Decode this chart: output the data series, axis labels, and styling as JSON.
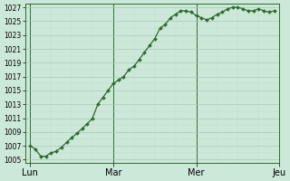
{
  "x_labels": [
    "Lun",
    "Mar",
    "Mer",
    "Jeu"
  ],
  "y_values": [
    1007,
    1006.5,
    1005.5,
    1005.5,
    1006,
    1006.2,
    1006.8,
    1007.5,
    1008.2,
    1008.8,
    1009.5,
    1010.2,
    1011.0,
    1013.0,
    1014.0,
    1015.0,
    1016.0,
    1016.5,
    1017.0,
    1018.0,
    1018.5,
    1019.5,
    1020.5,
    1021.5,
    1022.5,
    1024.0,
    1024.5,
    1025.5,
    1026.0,
    1026.5,
    1026.5,
    1026.3,
    1025.8,
    1025.5,
    1025.2,
    1025.5,
    1026.0,
    1026.3,
    1026.8,
    1027.0,
    1027.0,
    1026.8,
    1026.5,
    1026.5,
    1026.8,
    1026.5,
    1026.3,
    1026.5
  ],
  "ylim_min": 1004.5,
  "ylim_max": 1027.5,
  "yticks": [
    1005,
    1007,
    1009,
    1011,
    1013,
    1015,
    1017,
    1019,
    1021,
    1023,
    1025,
    1027
  ],
  "line_color": "#2d6a2d",
  "marker_color": "#2d6a2d",
  "bg_color": "#cce8d8",
  "grid_major_color": "#aac8b8",
  "grid_minor_color": "#bbdacb",
  "spine_color": "#2d6a2d",
  "tick_label_fontsize": 5.5,
  "x_label_fontsize": 7,
  "points_per_day": 16,
  "num_days": 3
}
